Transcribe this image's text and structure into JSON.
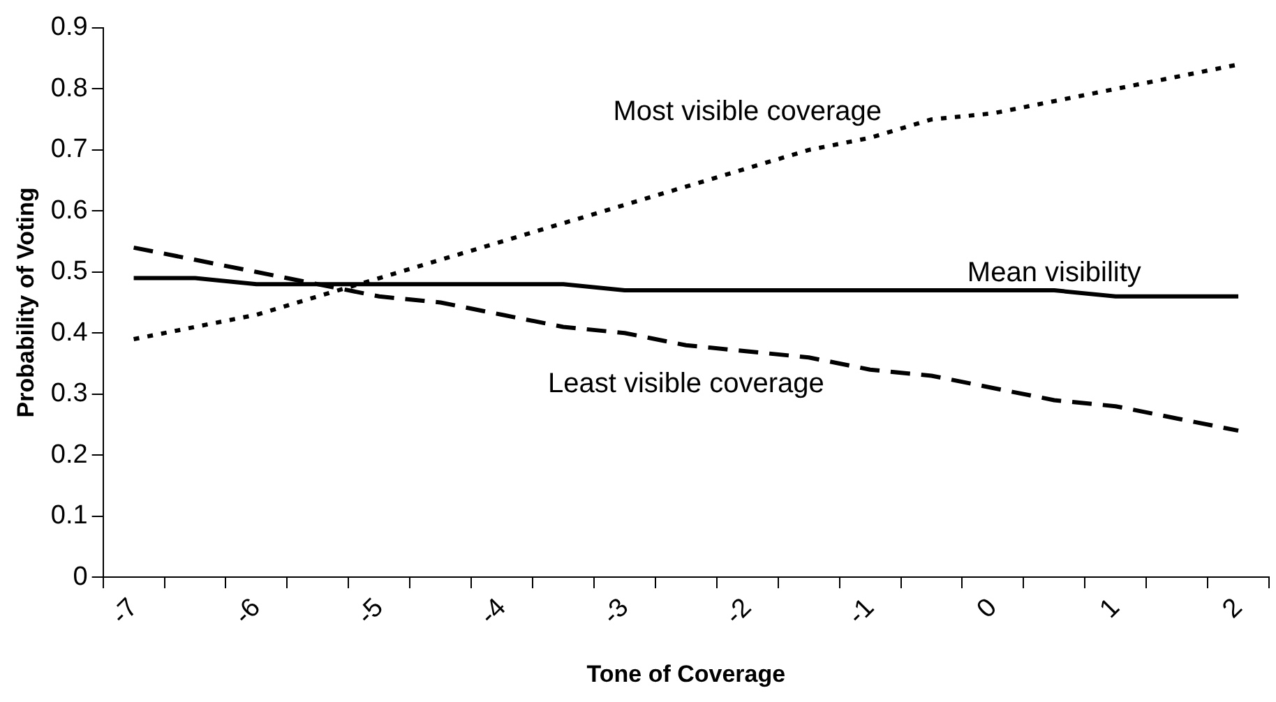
{
  "chart_data": {
    "type": "line",
    "xlabel": "Tone of Coverage",
    "ylabel": "Probability of Voting",
    "categories": [
      "-7",
      null,
      "-6",
      null,
      "-5",
      null,
      "-4",
      null,
      "-3",
      null,
      "-2",
      null,
      "-1",
      null,
      "0",
      null,
      "1",
      null,
      "2"
    ],
    "series": [
      {
        "name": "Most visible coverage",
        "color": "#000000",
        "line_style": "dotted",
        "values": [
          0.39,
          0.41,
          0.43,
          0.46,
          0.49,
          0.52,
          0.55,
          0.58,
          0.61,
          0.64,
          0.67,
          0.7,
          0.72,
          0.75,
          0.76,
          0.78,
          0.8,
          0.82,
          0.84
        ]
      },
      {
        "name": "Mean visibility",
        "color": "#000000",
        "line_style": "solid",
        "values": [
          0.49,
          0.49,
          0.48,
          0.48,
          0.48,
          0.48,
          0.48,
          0.48,
          0.47,
          0.47,
          0.47,
          0.47,
          0.47,
          0.47,
          0.47,
          0.47,
          0.46,
          0.46,
          0.46
        ]
      },
      {
        "name": "Least visible coverage",
        "color": "#000000",
        "line_style": "dashed",
        "values": [
          0.54,
          0.52,
          0.5,
          0.48,
          0.46,
          0.45,
          0.43,
          0.41,
          0.4,
          0.38,
          0.37,
          0.36,
          0.34,
          0.33,
          0.31,
          0.29,
          0.28,
          0.26,
          0.24
        ]
      }
    ],
    "ylim": [
      0,
      0.9
    ],
    "yticks": [
      0,
      0.1,
      0.2,
      0.3,
      0.4,
      0.5,
      0.6,
      0.7,
      0.8,
      0.9
    ],
    "grid": false,
    "legend": false,
    "marker": "none"
  }
}
